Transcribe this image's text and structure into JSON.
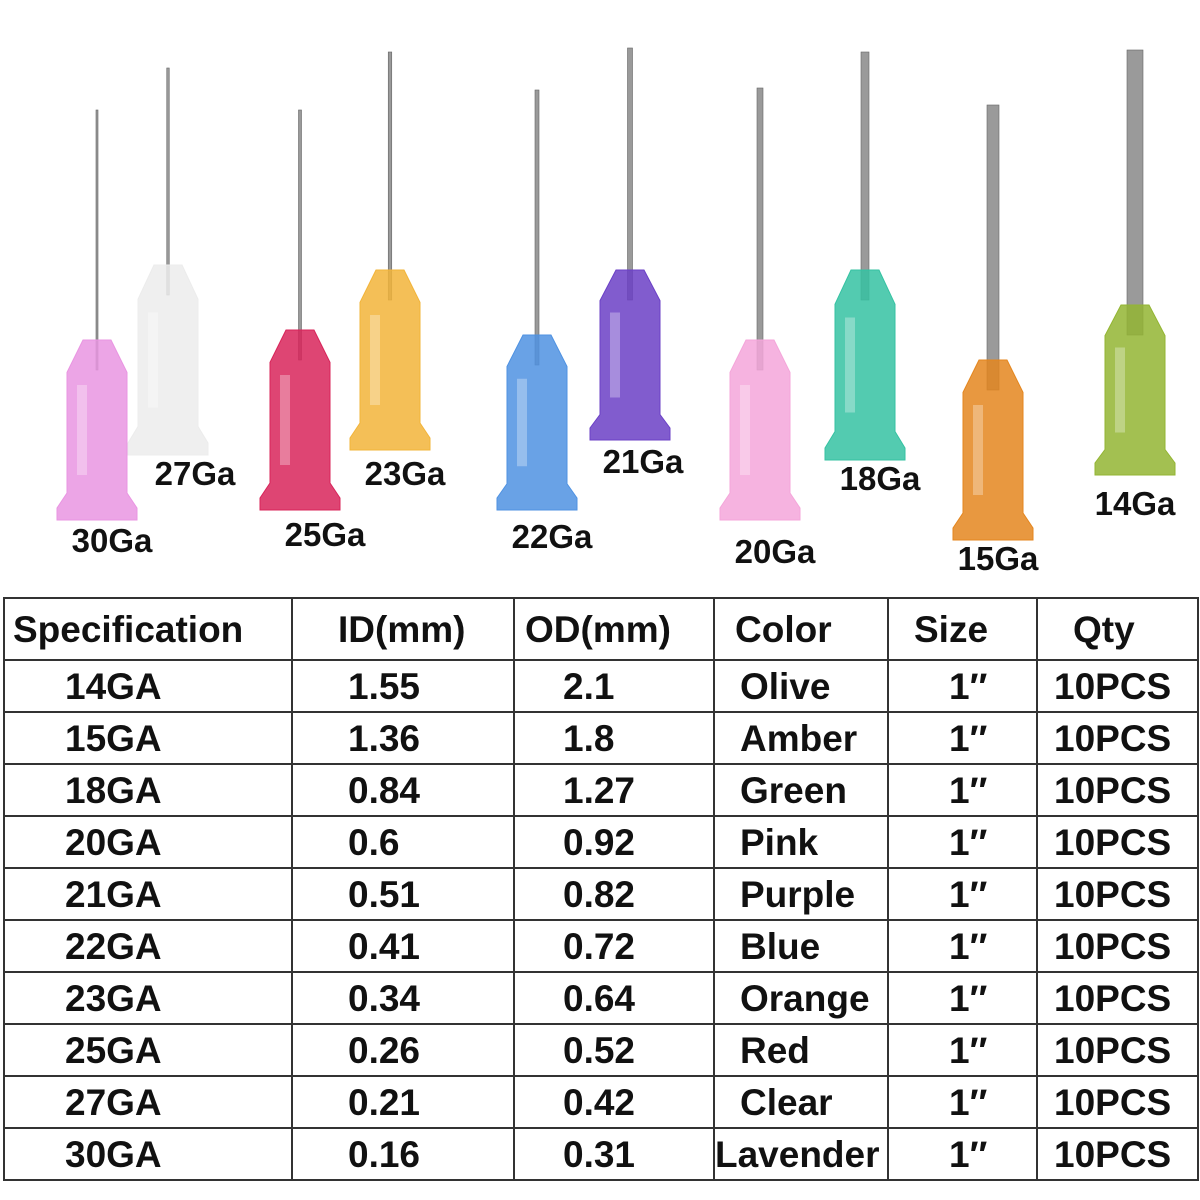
{
  "needle_labels": [
    "30Ga",
    "27Ga",
    "25Ga",
    "23Ga",
    "22Ga",
    "21Ga",
    "20Ga",
    "18Ga",
    "15Ga",
    "14Ga"
  ],
  "table": {
    "header": [
      "Specification",
      "ID(mm)",
      "OD(mm)",
      "Color",
      "Size",
      "Qty"
    ],
    "rows": [
      [
        "14GA",
        "1.55",
        "2.1",
        "Olive",
        "1″",
        "10PCS"
      ],
      [
        "15GA",
        "1.36",
        "1.8",
        "Amber",
        "1″",
        "10PCS"
      ],
      [
        "18GA",
        "0.84",
        "1.27",
        "Green",
        "1″",
        "10PCS"
      ],
      [
        "20GA",
        "0.6",
        "0.92",
        "Pink",
        "1″",
        "10PCS"
      ],
      [
        "21GA",
        "0.51",
        "0.82",
        "Purple",
        "1″",
        "10PCS"
      ],
      [
        "22GA",
        "0.41",
        "0.72",
        "Blue",
        "1″",
        "10PCS"
      ],
      [
        "23GA",
        "0.34",
        "0.64",
        "Orange",
        "1″",
        "10PCS"
      ],
      [
        "25GA",
        "0.26",
        "0.52",
        "Red",
        "1″",
        "10PCS"
      ],
      [
        "27GA",
        "0.21",
        "0.42",
        "Clear",
        "1″",
        "10PCS"
      ],
      [
        "30GA",
        "0.16",
        "0.31",
        "Lavender",
        "1″",
        "10PCS"
      ]
    ]
  }
}
